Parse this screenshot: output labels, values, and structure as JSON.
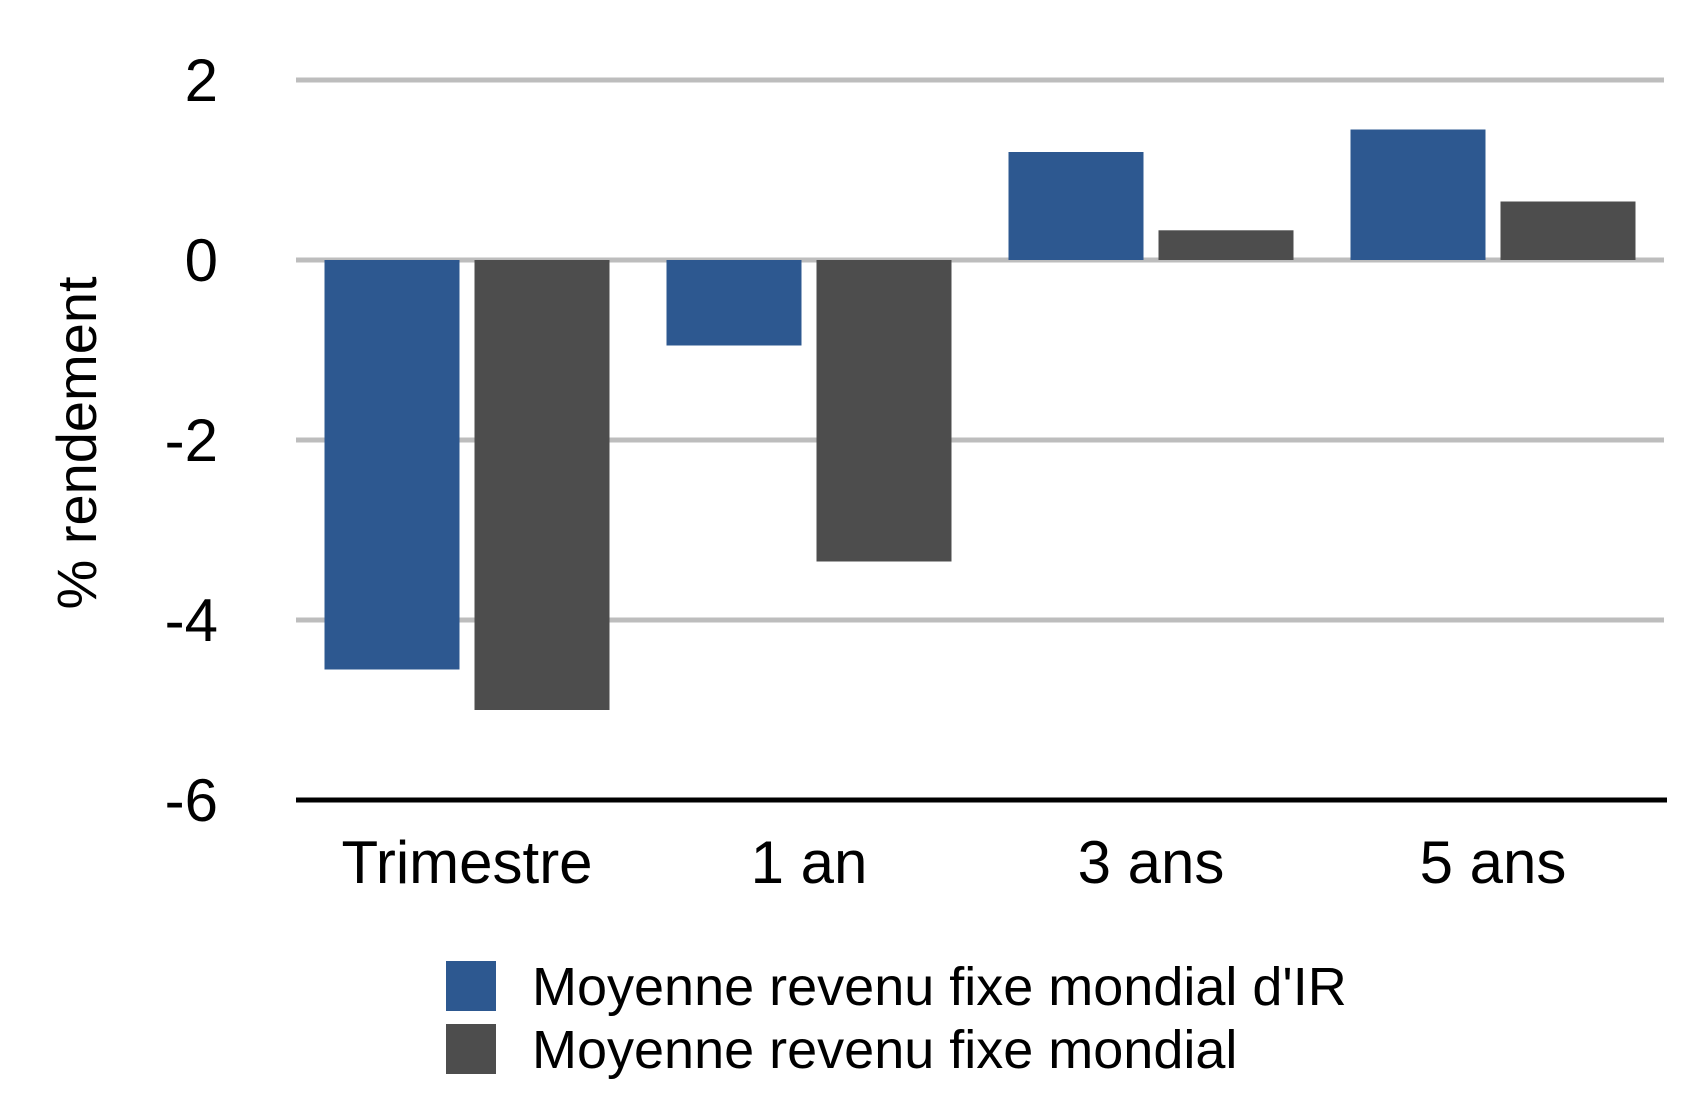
{
  "chart_data": {
    "type": "bar",
    "categories": [
      "Trimestre",
      "1 an",
      "3 ans",
      "5 ans"
    ],
    "series": [
      {
        "name": "Moyenne revenu fixe mondial d'IR",
        "color": "#2d5890",
        "values": [
          -4.55,
          -0.95,
          1.2,
          1.45
        ]
      },
      {
        "name": "Moyenne revenu fixe mondial",
        "color": "#4d4d4d",
        "values": [
          -5.0,
          -3.35,
          0.33,
          0.65
        ]
      }
    ],
    "title": "",
    "xlabel": "",
    "ylabel": "% rendement",
    "ylim": [
      -6,
      2
    ],
    "yticks": [
      2,
      0,
      -2,
      -4,
      -6
    ],
    "ytick_labels": [
      "2",
      "0",
      "-2",
      "-4",
      "-6"
    ],
    "grid": true,
    "gridline_color": "#bdbdbd",
    "legend_position": "bottom"
  }
}
